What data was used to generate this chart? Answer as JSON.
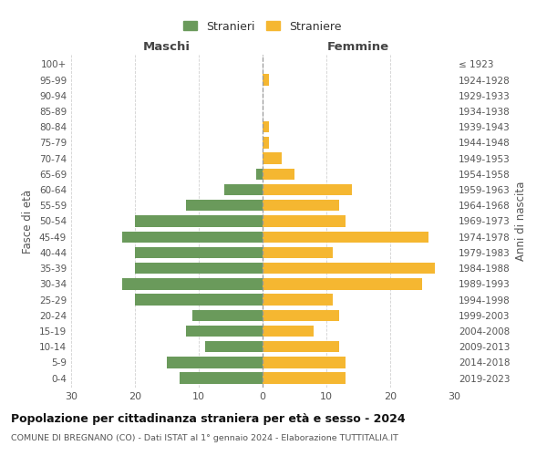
{
  "age_groups": [
    "0-4",
    "5-9",
    "10-14",
    "15-19",
    "20-24",
    "25-29",
    "30-34",
    "35-39",
    "40-44",
    "45-49",
    "50-54",
    "55-59",
    "60-64",
    "65-69",
    "70-74",
    "75-79",
    "80-84",
    "85-89",
    "90-94",
    "95-99",
    "100+"
  ],
  "birth_years": [
    "2019-2023",
    "2014-2018",
    "2009-2013",
    "2004-2008",
    "1999-2003",
    "1994-1998",
    "1989-1993",
    "1984-1988",
    "1979-1983",
    "1974-1978",
    "1969-1973",
    "1964-1968",
    "1959-1963",
    "1954-1958",
    "1949-1953",
    "1944-1948",
    "1939-1943",
    "1934-1938",
    "1929-1933",
    "1924-1928",
    "≤ 1923"
  ],
  "maschi": [
    13,
    15,
    9,
    12,
    11,
    20,
    22,
    20,
    20,
    22,
    20,
    12,
    6,
    1,
    0,
    0,
    0,
    0,
    0,
    0,
    0
  ],
  "femmine": [
    13,
    13,
    12,
    8,
    12,
    11,
    25,
    27,
    11,
    26,
    13,
    12,
    14,
    5,
    3,
    1,
    1,
    0,
    0,
    1,
    0
  ],
  "color_maschi": "#6a9a5b",
  "color_femmine": "#f5b731",
  "xlim": 30,
  "title": "Popolazione per cittadinanza straniera per età e sesso - 2024",
  "subtitle": "COMUNE DI BREGNANO (CO) - Dati ISTAT al 1° gennaio 2024 - Elaborazione TUTTITALIA.IT",
  "label_maschi": "Stranieri",
  "label_femmine": "Straniere",
  "ylabel_left": "Fasce di età",
  "ylabel_right": "Anni di nascita",
  "header_left": "Maschi",
  "header_right": "Femmine",
  "background_color": "#ffffff",
  "grid_color": "#cccccc"
}
